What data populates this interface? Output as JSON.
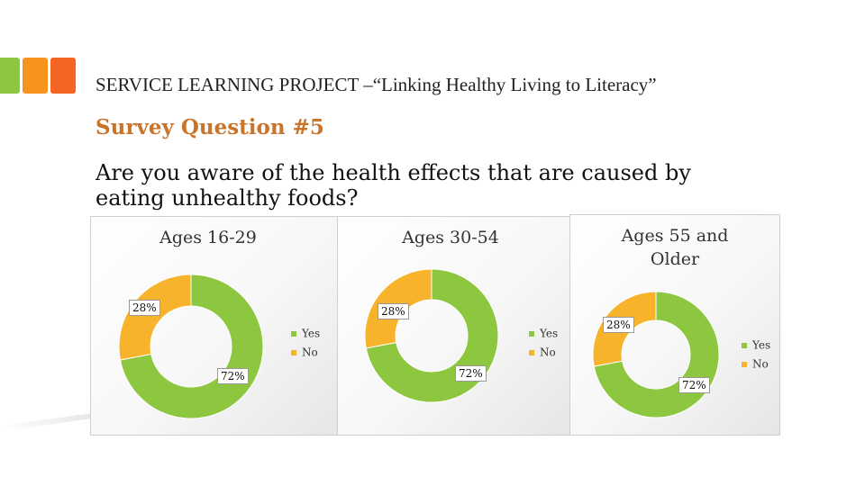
{
  "colors": {
    "logo": [
      "#8dc63f",
      "#f7941d",
      "#f26522"
    ],
    "heading": "#c9742a",
    "yes": "#8dc63f",
    "no": "#f7b32b"
  },
  "header": {
    "title": "SERVICE LEARNING PROJECT –“Linking Healthy Living to Literacy”",
    "survey_question": "Survey Question #5",
    "question": "Are you aware of the health effects that are caused by eating unhealthy foods?"
  },
  "chart_data": [
    {
      "type": "pie",
      "title": "Ages 16-29",
      "categories": [
        "Yes",
        "No"
      ],
      "values": [
        72,
        28
      ],
      "labels": [
        "72%",
        "28%"
      ],
      "legend": "right"
    },
    {
      "type": "pie",
      "title": "Ages 30-54",
      "categories": [
        "Yes",
        "No"
      ],
      "values": [
        72,
        28
      ],
      "labels": [
        "72%",
        "28%"
      ],
      "legend": "right"
    },
    {
      "type": "pie",
      "title": "Ages 55 and Older",
      "categories": [
        "Yes",
        "No"
      ],
      "values": [
        72,
        28
      ],
      "labels": [
        "72%",
        "28%"
      ],
      "legend": "right"
    }
  ]
}
